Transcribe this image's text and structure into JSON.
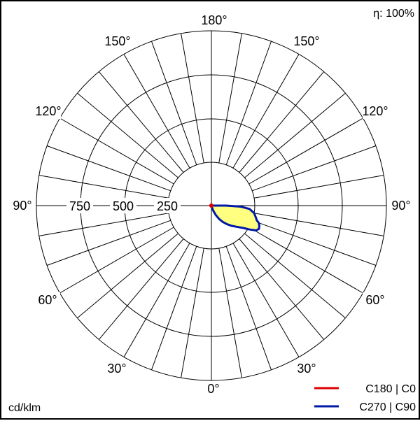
{
  "chart_data": {
    "type": "polar",
    "efficiency_label": "η: 100%",
    "unit_label": "cd/klm",
    "radial_ticks": [
      250,
      500,
      750
    ],
    "angle_labels": {
      "bottom": "0°",
      "lower_left": "30°",
      "lower_right": "30°",
      "mid_lower_left": "60°",
      "mid_lower_right": "60°",
      "left": "90°",
      "right": "90°",
      "mid_upper_left": "120°",
      "mid_upper_right": "120°",
      "upper_left": "150°",
      "upper_right": "150°",
      "top": "180°"
    },
    "series": [
      {
        "name": "C180 | C0",
        "color": "#e00000",
        "points": [
          [
            0,
            0
          ]
        ]
      },
      {
        "name": "C270 | C90",
        "color": "#0018a8",
        "fill": "#ffff80",
        "points": [
          [
            90,
            0
          ],
          [
            90,
            85
          ],
          [
            88,
            170
          ],
          [
            85,
            220
          ],
          [
            80,
            250
          ],
          [
            75,
            265
          ],
          [
            72,
            275
          ],
          [
            70,
            290
          ],
          [
            67,
            300
          ],
          [
            64,
            305
          ],
          [
            61,
            295
          ],
          [
            58,
            260
          ],
          [
            55,
            225
          ],
          [
            50,
            190
          ],
          [
            45,
            165
          ],
          [
            40,
            140
          ],
          [
            35,
            115
          ],
          [
            30,
            90
          ],
          [
            25,
            60
          ],
          [
            20,
            30
          ],
          [
            0,
            0
          ]
        ]
      }
    ]
  }
}
